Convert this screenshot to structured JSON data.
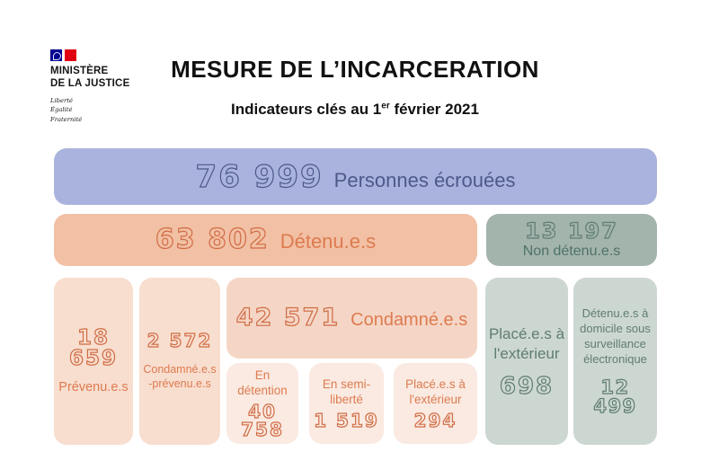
{
  "header": {
    "logo": {
      "ministry_line1": "MINISTÈRE",
      "ministry_line2": "DE LA JUSTICE",
      "motto": [
        "Liberté",
        "Égalité",
        "Fraternité"
      ]
    },
    "title": "MESURE DE L’INCARCERATION",
    "subtitle_prefix": "Indicateurs clés au 1",
    "subtitle_sup": "er",
    "subtitle_suffix": " février 2021"
  },
  "totals": {
    "personnes_ecrouees": {
      "value": "76 999",
      "label": "Personnes écrouées"
    },
    "detenus": {
      "value": "63 802",
      "label": "Détenu.e.s"
    },
    "non_detenus": {
      "value": "13 197",
      "label": "Non détenu.e.s"
    }
  },
  "detenus_breakdown": {
    "prevenus": {
      "value": "18 659",
      "label": "Prévenu.e.s"
    },
    "condamnes_prevenus": {
      "value": "2 572",
      "label_line1": "Condamné.e.s",
      "label_line2": "-prévenu.e.s"
    },
    "condamnes": {
      "value": "42 571",
      "label": "Condamné.e.s"
    },
    "condamnes_detail": [
      {
        "label_line1": "En",
        "label_line2": "détention",
        "value": "40 758"
      },
      {
        "label_line1": "En semi-",
        "label_line2": "liberté",
        "value": "1 519"
      },
      {
        "label_line1": "Placé.e.s  à",
        "label_line2": "l'extérieur",
        "value": "294"
      }
    ]
  },
  "non_detenus_breakdown": {
    "places_exterieur": {
      "label_line1": "Placé.e.s à",
      "label_line2": "l'extérieur",
      "value": "698"
    },
    "surveillance_electronique": {
      "label": "Détenu.e.s à domicile sous surveillance électronique",
      "value": "12 499"
    }
  },
  "colors": {
    "purple-bg": "#a9b3dd",
    "purple-text": "#4e598b",
    "orange-bg": "#f2c0a4",
    "orange-text": "#dd7b50",
    "num-orange": "#d06c45",
    "peach-bg": "#f8decf",
    "condamne-bg": "#f5d6c6",
    "subbox-bg": "#faeae1",
    "green-bg": "#a3b4ac",
    "green-text": "#4f7268",
    "greenbox-bg": "#cdd7d1",
    "greenbox-text": "#5f7d73",
    "flag-blue": "#000091",
    "flag-red": "#E1000F"
  }
}
